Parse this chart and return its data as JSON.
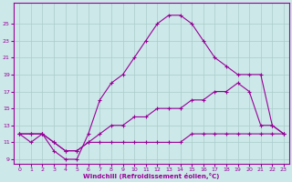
{
  "xlabel": "Windchill (Refroidissement éolien,°C)",
  "background_color": "#cce8e8",
  "grid_color": "#aacccc",
  "line_color": "#990099",
  "xmin": 0,
  "xmax": 23,
  "ymin": 9,
  "ymax": 27,
  "yticks": [
    9,
    11,
    13,
    15,
    17,
    19,
    21,
    23,
    25
  ],
  "xticks": [
    0,
    1,
    2,
    3,
    4,
    5,
    6,
    7,
    8,
    9,
    10,
    11,
    12,
    13,
    14,
    15,
    16,
    17,
    18,
    19,
    20,
    21,
    22,
    23
  ],
  "lines": [
    {
      "x": [
        0,
        1,
        2,
        3,
        4,
        5,
        6,
        7,
        8,
        9,
        10,
        11,
        12,
        13,
        14,
        15,
        16,
        17,
        18,
        19,
        20,
        21,
        22,
        23
      ],
      "y": [
        12,
        11,
        12,
        10,
        9,
        9,
        12,
        16,
        18,
        19,
        21,
        23,
        25,
        26,
        26,
        25,
        23,
        21,
        20,
        19,
        19,
        19,
        13,
        12
      ]
    },
    {
      "x": [
        0,
        1,
        2,
        3,
        4,
        5,
        6,
        7,
        8,
        9,
        10,
        11,
        12,
        13,
        14,
        15,
        16,
        17,
        18,
        19,
        20,
        21,
        22,
        23
      ],
      "y": [
        12,
        12,
        12,
        11,
        10,
        10,
        11,
        12,
        13,
        13,
        14,
        14,
        15,
        15,
        15,
        16,
        16,
        17,
        17,
        18,
        17,
        13,
        13,
        12
      ]
    },
    {
      "x": [
        0,
        1,
        2,
        3,
        4,
        5,
        6,
        7,
        8,
        9,
        10,
        11,
        12,
        13,
        14,
        15,
        16,
        17,
        18,
        19,
        20,
        21,
        22,
        23
      ],
      "y": [
        12,
        12,
        12,
        11,
        10,
        10,
        11,
        11,
        11,
        11,
        11,
        11,
        11,
        11,
        11,
        12,
        12,
        12,
        12,
        12,
        12,
        12,
        12,
        12
      ]
    }
  ]
}
